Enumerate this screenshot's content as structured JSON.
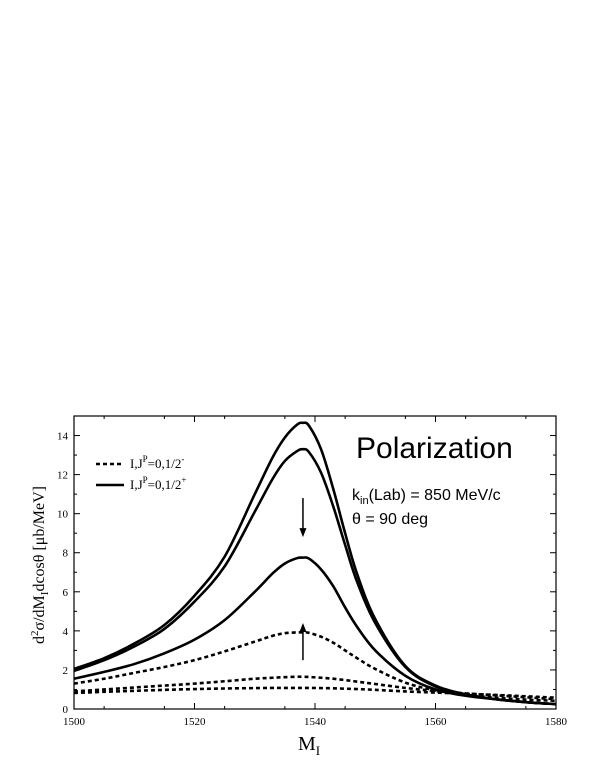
{
  "chart_data": {
    "type": "line",
    "title": "Polarization",
    "xlabel": "M",
    "xlabel_sub": "I",
    "ylabel": "d²σ/dM_I dcosθ [μb/MeV]",
    "ylabel_parts": {
      "lead": "d",
      "sup": "2",
      "mid": "σ/dM",
      "sub": "I",
      "tail": "dcosθ [μb/MeV]"
    },
    "xlim": [
      1500,
      1580
    ],
    "ylim": [
      0,
      15
    ],
    "xticks": [
      1500,
      1520,
      1540,
      1560,
      1580
    ],
    "yticks": [
      0,
      2,
      4,
      6,
      8,
      10,
      12,
      14
    ],
    "annotations": {
      "kin_k": "k",
      "kin_sub": "in",
      "kin_rest": "(Lab) = 850 MeV/c",
      "theta": "θ = 90 deg"
    },
    "legend": {
      "placement": "top-left",
      "entries": [
        {
          "style": "dashed",
          "pre": "I,J",
          "sup_p": "P",
          "mid": "=0,1/2",
          "sup_parity": "-"
        },
        {
          "style": "solid",
          "pre": "I,J",
          "sup_p": "P",
          "mid": "=0,1/2",
          "sup_parity": "+"
        }
      ]
    },
    "arrows": [
      {
        "x": 1538,
        "y_from": 10.8,
        "y_to": 8.8,
        "direction": "down"
      },
      {
        "x": 1538,
        "y_from": 2.5,
        "y_to": 4.4,
        "direction": "up"
      }
    ],
    "x": [
      1500,
      1505,
      1510,
      1515,
      1520,
      1525,
      1530,
      1533,
      1535,
      1537,
      1538,
      1539,
      1541,
      1543,
      1545,
      1547,
      1550,
      1555,
      1560,
      1565,
      1570,
      1575,
      1580
    ],
    "series": [
      {
        "style": "solid",
        "values": [
          2.05,
          2.6,
          3.35,
          4.3,
          5.8,
          7.8,
          11.0,
          12.9,
          13.9,
          14.55,
          14.65,
          14.5,
          13.3,
          11.3,
          9.0,
          6.9,
          4.6,
          2.2,
          1.2,
          0.75,
          0.5,
          0.35,
          0.25
        ]
      },
      {
        "style": "solid",
        "values": [
          1.95,
          2.5,
          3.2,
          4.1,
          5.5,
          7.3,
          10.1,
          11.8,
          12.7,
          13.2,
          13.3,
          13.15,
          12.1,
          10.4,
          8.4,
          6.5,
          4.4,
          2.15,
          1.15,
          0.75,
          0.5,
          0.35,
          0.25
        ]
      },
      {
        "style": "solid",
        "values": [
          1.55,
          1.9,
          2.3,
          2.85,
          3.55,
          4.55,
          6.0,
          6.95,
          7.45,
          7.72,
          7.75,
          7.7,
          7.15,
          6.3,
          5.2,
          4.2,
          3.0,
          1.7,
          1.0,
          0.68,
          0.5,
          0.35,
          0.25
        ]
      },
      {
        "style": "dashed",
        "values": [
          1.3,
          1.55,
          1.85,
          2.15,
          2.5,
          2.95,
          3.45,
          3.75,
          3.88,
          3.92,
          3.92,
          3.9,
          3.7,
          3.4,
          3.0,
          2.6,
          2.05,
          1.35,
          0.95,
          0.72,
          0.58,
          0.48,
          0.42
        ]
      },
      {
        "style": "dashed",
        "values": [
          0.9,
          1.0,
          1.1,
          1.2,
          1.3,
          1.42,
          1.55,
          1.6,
          1.63,
          1.65,
          1.65,
          1.64,
          1.6,
          1.55,
          1.48,
          1.4,
          1.28,
          1.08,
          0.92,
          0.8,
          0.7,
          0.6,
          0.5
        ]
      },
      {
        "style": "dashed",
        "values": [
          0.82,
          0.88,
          0.93,
          0.98,
          1.02,
          1.05,
          1.07,
          1.08,
          1.08,
          1.08,
          1.08,
          1.08,
          1.07,
          1.06,
          1.04,
          1.02,
          0.98,
          0.9,
          0.84,
          0.78,
          0.72,
          0.65,
          0.58
        ]
      }
    ]
  }
}
